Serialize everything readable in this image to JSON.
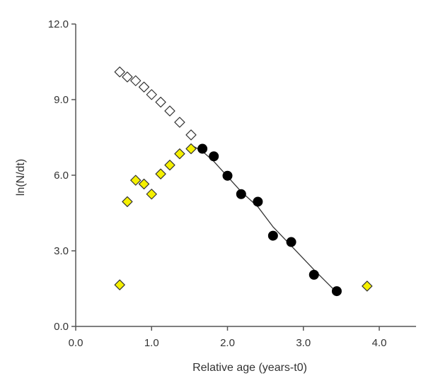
{
  "chart_data": {
    "type": "scatter",
    "title": "",
    "xlabel": "Relative age (years-t0)",
    "ylabel": "ln(N/dt)",
    "xlim": [
      0.0,
      4.5
    ],
    "ylim": [
      0.0,
      12.0
    ],
    "x_ticks": [
      "0.0",
      "1.0",
      "2.0",
      "3.0",
      "4.0"
    ],
    "y_ticks": [
      "0.0",
      "3.0",
      "6.0",
      "9.0",
      "12.0"
    ],
    "grid": false,
    "legend": "none",
    "series": [
      {
        "marker": "open-diamond",
        "fill": "#ffffff",
        "stroke": "#333333",
        "x": [
          0.58,
          0.68,
          0.79,
          0.9,
          1.0,
          1.12,
          1.24,
          1.37,
          1.52
        ],
        "y": [
          10.1,
          9.9,
          9.75,
          9.5,
          9.2,
          8.9,
          8.55,
          8.1,
          7.6
        ]
      },
      {
        "marker": "yellow-diamond",
        "fill": "#f5f000",
        "stroke": "#333333",
        "x": [
          0.58,
          0.68,
          0.79,
          0.9,
          1.0,
          1.12,
          1.24,
          1.37,
          1.52,
          3.84
        ],
        "y": [
          1.65,
          4.95,
          5.8,
          5.65,
          5.25,
          6.05,
          6.4,
          6.85,
          7.05,
          1.6
        ]
      },
      {
        "marker": "filled-circle",
        "fill": "#000000",
        "stroke": "#000000",
        "x": [
          1.67,
          1.82,
          2.0,
          2.18,
          2.4,
          2.6,
          2.84,
          3.14,
          3.44
        ],
        "y": [
          7.05,
          6.75,
          5.98,
          5.25,
          4.95,
          3.6,
          3.35,
          2.05,
          1.4
        ]
      }
    ],
    "line": {
      "name": "",
      "color": "#333333",
      "x": [
        1.52,
        1.67,
        1.82,
        2.0,
        2.18,
        2.4,
        2.6,
        2.84,
        3.14,
        3.44
      ],
      "y": [
        7.2,
        6.95,
        6.55,
        5.95,
        5.35,
        4.75,
        3.95,
        3.2,
        2.25,
        1.35
      ]
    }
  }
}
